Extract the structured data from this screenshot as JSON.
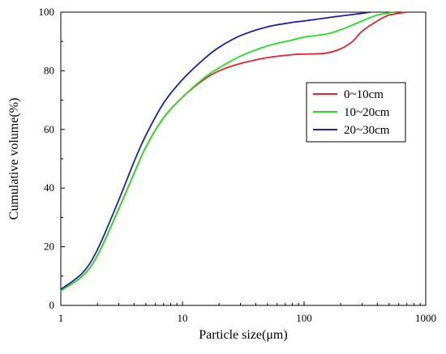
{
  "chart_data": {
    "type": "line",
    "xlabel": "Particle size(μm)",
    "ylabel": "Cumulative volume(%)",
    "x_scale": "log",
    "xlim": [
      1,
      1000
    ],
    "ylim": [
      0,
      100
    ],
    "x_ticks": [
      "1",
      "10",
      "100",
      "1000"
    ],
    "y_ticks": [
      "0",
      "20",
      "40",
      "60",
      "80",
      "100"
    ],
    "legend_position": "right-middle",
    "grid": false,
    "series": [
      {
        "name": "0~10cm",
        "color": "#e8222a",
        "x": [
          1,
          1.5,
          2,
          3,
          4,
          5,
          7,
          10,
          15,
          20,
          30,
          50,
          80,
          100,
          150,
          200,
          250,
          300,
          400,
          500,
          700
        ],
        "y": [
          5,
          10,
          17,
          33,
          45,
          54,
          64,
          71,
          77,
          80,
          82.5,
          84.5,
          85.5,
          85.7,
          86,
          87.5,
          90,
          93.5,
          97,
          99,
          100
        ]
      },
      {
        "name": "10~20cm",
        "color": "#22e022",
        "x": [
          1,
          1.5,
          2,
          3,
          4,
          5,
          7,
          10,
          15,
          20,
          30,
          50,
          80,
          100,
          150,
          200,
          300,
          400,
          550
        ],
        "y": [
          5,
          10,
          17,
          33,
          45,
          54,
          64,
          71,
          77.5,
          81,
          85,
          88.5,
          90.5,
          91.5,
          92.5,
          94,
          97,
          99,
          100
        ]
      },
      {
        "name": "20~30cm",
        "color": "#1c24a8",
        "x": [
          1,
          1.5,
          2,
          3,
          4,
          5,
          7,
          10,
          15,
          20,
          30,
          50,
          80,
          100,
          150,
          200,
          300,
          350
        ],
        "y": [
          5.5,
          11,
          19,
          36,
          49,
          58,
          69,
          77,
          84,
          88,
          92,
          95,
          96.5,
          97,
          98,
          98.7,
          99.6,
          100
        ]
      }
    ]
  }
}
